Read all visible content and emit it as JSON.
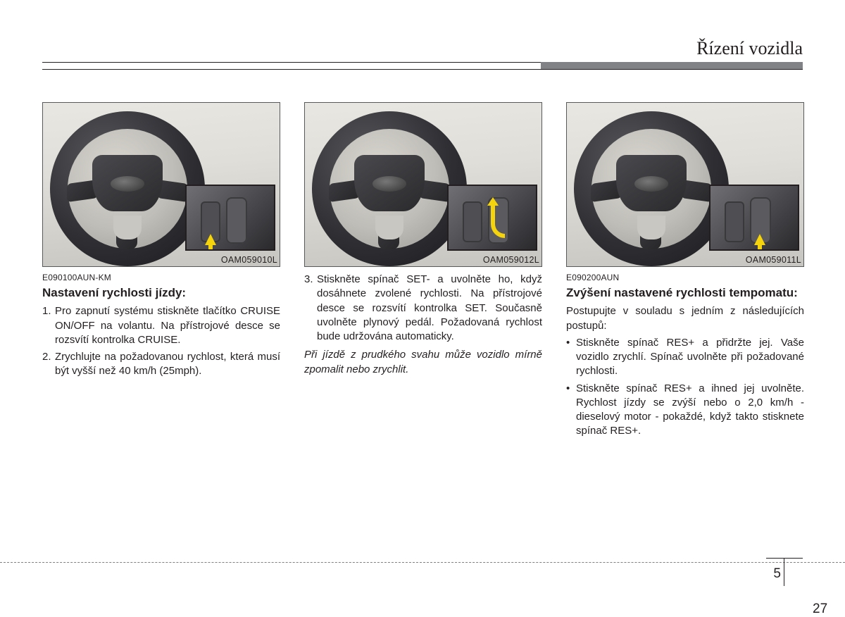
{
  "header": {
    "title": "Řízení vozidla"
  },
  "columns": [
    {
      "figureLabel": "OAM059010L",
      "code": "E090100AUN-KM",
      "heading": "Nastavení rychlosti jízdy:",
      "numbered": [
        "Pro zapnutí systému stiskněte tlačítko CRUISE ON/OFF na volantu. Na přístrojové desce se rozsvítí kontrolka CRUISE.",
        "Zrychlujte na požadovanou rychlost, která musí být vyšší než 40 km/h (25mph)."
      ],
      "numStart": 1,
      "arrow": "up-left"
    },
    {
      "figureLabel": "OAM059012L",
      "numbered": [
        "Stiskněte spínač SET- a uvolněte ho, když dosáhnete zvolené rychlosti. Na přístrojové desce se rozsvítí kontrolka SET. Současně uvolněte plynový pedál. Požadovaná rychlost bude udržována automaticky."
      ],
      "numStart": 3,
      "italic": "Při jízdě z prudkého svahu může vozidlo mírně zpomalit nebo zrychlit.",
      "arrow": "curve"
    },
    {
      "figureLabel": "OAM059011L",
      "code": "E090200AUN",
      "heading": "Zvýšení nastavené rychlosti tempomatu:",
      "intro": "Postupujte v souladu s jedním z následujících postupů:",
      "bullets": [
        "Stiskněte spínač RES+ a přidržte jej. Vaše vozidlo zrychlí. Spínač uvolněte při požadované rychlosti.",
        "Stiskněte spínač RES+ a ihned jej uvolněte. Rychlost jízdy se zvýší nebo o 2,0 km/h - dieselový motor - pokaždé, když takto stisknete spínač RES+."
      ],
      "arrow": "up-right"
    }
  ],
  "footer": {
    "chapter": "5",
    "page": "27"
  }
}
